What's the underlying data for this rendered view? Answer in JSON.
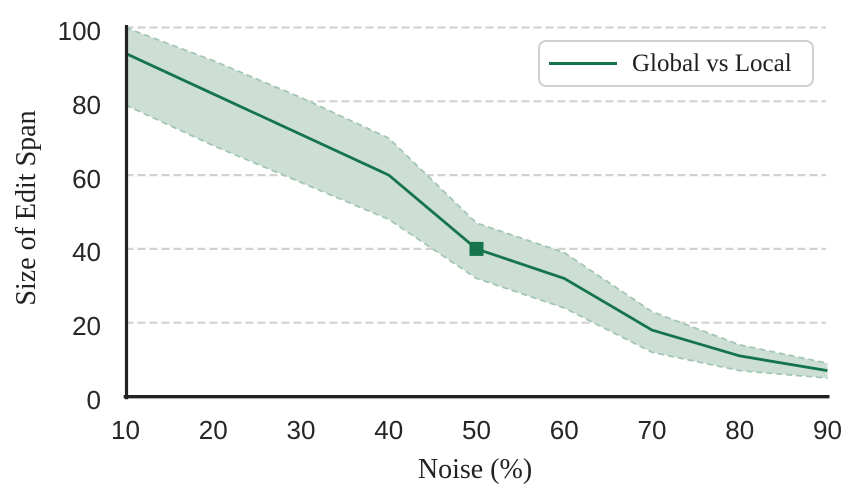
{
  "colors": {
    "line": "#15744c",
    "band_fill": "#cdded5",
    "band_edge": "#a3c6b5",
    "grid": "#d2d2d2",
    "spine": "#222222",
    "tick_text": "#262626"
  },
  "chart_data": {
    "type": "line",
    "title": "",
    "xlabel": "Noise (%)",
    "ylabel": "Size of Edit Span",
    "x": [
      10,
      20,
      30,
      40,
      50,
      60,
      70,
      80,
      90
    ],
    "series": [
      {
        "name": "Global vs Local",
        "values": [
          93,
          82,
          71,
          60,
          40,
          32,
          18,
          11,
          7
        ],
        "band_upper": [
          100,
          91,
          81,
          70,
          47,
          39,
          23,
          14,
          9
        ],
        "band_lower": [
          79,
          68,
          58,
          48,
          32,
          24,
          12,
          7,
          5
        ],
        "marker": {
          "shape": "square",
          "x": 50,
          "y": 40
        }
      }
    ],
    "xlim": [
      10,
      90
    ],
    "ylim": [
      0,
      100
    ],
    "xticks": [
      10,
      20,
      30,
      40,
      50,
      60,
      70,
      80,
      90
    ],
    "yticks": [
      0,
      20,
      40,
      60,
      80,
      100
    ],
    "grid": "horizontal-dashed",
    "legend_position": "upper-right"
  }
}
